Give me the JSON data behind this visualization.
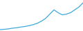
{
  "x": [
    0,
    1,
    2,
    3,
    4,
    5,
    6,
    7,
    8,
    9,
    10,
    11,
    12,
    13,
    14,
    15,
    16,
    17,
    18,
    19,
    20
  ],
  "y": [
    1,
    1.2,
    1.5,
    2,
    2.3,
    2.8,
    3.2,
    3.8,
    4.5,
    5.5,
    7,
    9,
    12,
    15,
    13,
    11.5,
    12,
    13,
    15,
    17,
    20
  ],
  "line_color": "#3da8dc",
  "line_width": 0.9,
  "background_color": "#ffffff",
  "ylim": [
    0,
    22
  ],
  "xlim": [
    0,
    20
  ]
}
